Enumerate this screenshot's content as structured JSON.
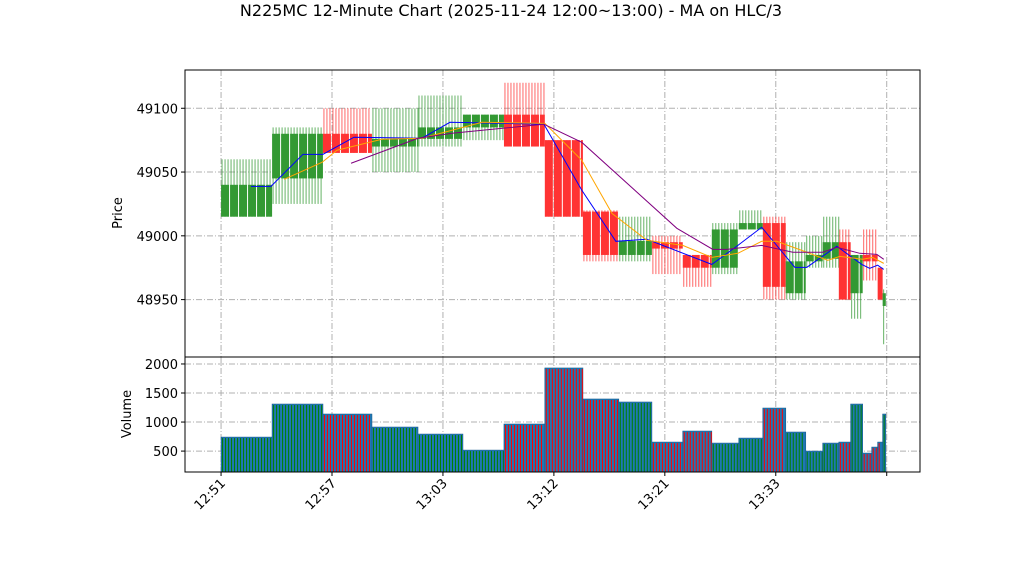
{
  "chart_data": [
    {
      "type": "candlestick",
      "title": "N225MC 12-Minute Chart (2025-11-24 12:00~13:00) - MA on HLC/3",
      "ylabel": "Price",
      "ylim": [
        48905,
        49130
      ],
      "yticks": [
        48950,
        49000,
        49050,
        49100
      ],
      "grid": true,
      "xticks": [
        {
          "index": 0,
          "label": "12:51"
        },
        {
          "index": 6,
          "label": "12:57"
        },
        {
          "index": 12,
          "label": "13:03"
        },
        {
          "index": 18,
          "label": "13:12"
        },
        {
          "index": 24,
          "label": "13:21"
        },
        {
          "index": 30,
          "label": "13:33"
        },
        {
          "index": 36,
          "label": ""
        }
      ],
      "xlim": [
        -1.95,
        37.8
      ],
      "colors": {
        "up": "#339933",
        "down": "#ff3333"
      },
      "candles": [
        {
          "x0": 0,
          "x1": 2.76,
          "open": 49015,
          "high": 49060,
          "low": 49015,
          "close": 49040
        },
        {
          "x0": 2.76,
          "x1": 5.51,
          "open": 49045,
          "high": 49085,
          "low": 49025,
          "close": 49080
        },
        {
          "x0": 5.51,
          "x1": 8.16,
          "open": 49080,
          "high": 49100,
          "low": 49065,
          "close": 49065
        },
        {
          "x0": 8.16,
          "x1": 10.65,
          "open": 49070,
          "high": 49100,
          "low": 49050,
          "close": 49076
        },
        {
          "x0": 10.65,
          "x1": 13.08,
          "open": 49076,
          "high": 49110,
          "low": 49070,
          "close": 49085
        },
        {
          "x0": 13.08,
          "x1": 15.3,
          "open": 49085,
          "high": 49095,
          "low": 49075,
          "close": 49095
        },
        {
          "x0": 15.3,
          "x1": 17.51,
          "open": 49095,
          "high": 49120,
          "low": 49070,
          "close": 49070
        },
        {
          "x0": 17.51,
          "x1": 19.57,
          "open": 49075,
          "high": 49075,
          "low": 49015,
          "close": 49015
        },
        {
          "x0": 19.57,
          "x1": 21.51,
          "open": 49019,
          "high": 49020,
          "low": 48980,
          "close": 48985
        },
        {
          "x0": 21.51,
          "x1": 23.3,
          "open": 48985,
          "high": 49015,
          "low": 48980,
          "close": 48996
        },
        {
          "x0": 23.3,
          "x1": 24.97,
          "open": 48995,
          "high": 49000,
          "low": 48970,
          "close": 48990
        },
        {
          "x0": 24.97,
          "x1": 26.54,
          "open": 48985,
          "high": 48985,
          "low": 48960,
          "close": 48975
        },
        {
          "x0": 26.54,
          "x1": 28.0,
          "open": 48975,
          "high": 49010,
          "low": 48970,
          "close": 49005
        },
        {
          "x0": 28.0,
          "x1": 29.3,
          "open": 49005,
          "high": 49020,
          "low": 49005,
          "close": 49010
        },
        {
          "x0": 29.3,
          "x1": 30.54,
          "open": 49010,
          "high": 49015,
          "low": 48950,
          "close": 48960
        },
        {
          "x0": 30.54,
          "x1": 31.62,
          "open": 48955,
          "high": 48995,
          "low": 48950,
          "close": 48980
        },
        {
          "x0": 31.62,
          "x1": 32.54,
          "open": 48980,
          "high": 49000,
          "low": 48975,
          "close": 48985
        },
        {
          "x0": 32.54,
          "x1": 33.41,
          "open": 48982,
          "high": 49015,
          "low": 48975,
          "close": 48995
        },
        {
          "x0": 33.41,
          "x1": 34.05,
          "open": 48995,
          "high": 49005,
          "low": 48950,
          "close": 48950
        },
        {
          "x0": 34.05,
          "x1": 34.7,
          "open": 48955,
          "high": 48985,
          "low": 48935,
          "close": 48985
        },
        {
          "x0": 34.7,
          "x1": 35.19,
          "open": 48985,
          "high": 49005,
          "low": 48965,
          "close": 48980
        },
        {
          "x0": 35.19,
          "x1": 35.51,
          "open": 48985,
          "high": 49005,
          "low": 48965,
          "close": 48980
        },
        {
          "x0": 35.51,
          "x1": 35.78,
          "open": 48975,
          "high": 48975,
          "low": 48950,
          "close": 48950
        },
        {
          "x0": 35.78,
          "x1": 35.95,
          "open": 48945,
          "high": 48958,
          "low": 48915,
          "close": 48955
        }
      ],
      "moving_averages": [
        {
          "color": "#0000ff",
          "points": [
            [
              1.62,
              49038.8
            ],
            [
              2.7,
              49038.8
            ],
            [
              4.43,
              49063.9
            ],
            [
              5.51,
              49063.9
            ],
            [
              7.19,
              49077.3
            ],
            [
              10.86,
              49076.5
            ],
            [
              12.38,
              49089
            ],
            [
              17.46,
              49087.5
            ],
            [
              19.51,
              49035.7
            ],
            [
              21.35,
              48995.7
            ],
            [
              23.03,
              48997.3
            ],
            [
              26.54,
              48977.6
            ],
            [
              27.89,
              48991.8
            ],
            [
              29.24,
              49006.7
            ],
            [
              31.03,
              48975.3
            ],
            [
              31.68,
              48975.3
            ],
            [
              33.3,
              48991.8
            ],
            [
              34.65,
              48977.6
            ],
            [
              35.08,
              48974.5
            ],
            [
              35.51,
              48977
            ],
            [
              35.84,
              48973.7
            ]
          ]
        },
        {
          "color": "#ffa500",
          "points": [
            [
              3.41,
              49044.3
            ],
            [
              5.46,
              49057.6
            ],
            [
              6.27,
              49067.1
            ],
            [
              8.7,
              49075.7
            ],
            [
              10.86,
              49076.5
            ],
            [
              14.11,
              49089
            ],
            [
              17.51,
              49088.2
            ],
            [
              19.51,
              49059.2
            ],
            [
              21.14,
              49017.6
            ],
            [
              23.03,
              48996.5
            ],
            [
              24.97,
              48992.5
            ],
            [
              26.54,
              48983.1
            ],
            [
              27.95,
              48986.3
            ],
            [
              29.24,
              48995.7
            ],
            [
              30.05,
              48995.7
            ],
            [
              31.68,
              48987.1
            ],
            [
              32.81,
              48980.8
            ],
            [
              33.46,
              48983.9
            ],
            [
              34.7,
              48981.6
            ],
            [
              35.24,
              48983.1
            ],
            [
              35.84,
              48978.4
            ]
          ]
        },
        {
          "color": "#800080",
          "points": [
            [
              7.03,
              49056.9
            ],
            [
              10.65,
              49076.5
            ],
            [
              12.49,
              49080.4
            ],
            [
              17.46,
              49087.5
            ],
            [
              19.51,
              49073.3
            ],
            [
              24.65,
              49005.9
            ],
            [
              26.59,
              48989.4
            ],
            [
              27.35,
              48989.4
            ],
            [
              29.24,
              48992.5
            ],
            [
              30.92,
              48987.1
            ],
            [
              32.54,
              48987.1
            ],
            [
              33.3,
              48991
            ],
            [
              34.54,
              48986.3
            ],
            [
              35.46,
              48985.5
            ],
            [
              35.84,
              48981.6
            ]
          ]
        }
      ]
    },
    {
      "type": "bar",
      "ylabel": "Volume",
      "ylim": [
        140,
        2120
      ],
      "yticks": [
        500,
        1000,
        1500,
        2000
      ],
      "grid": true,
      "colors": {
        "bar": "#1f77b4",
        "up": "#008000",
        "down": "#ff0000"
      },
      "volumes": [
        741,
        1310,
        1138,
        914,
        793,
        517,
        966,
        1931,
        1397,
        1345,
        655,
        845,
        638,
        724,
        1241,
        828,
        500,
        638,
        655,
        1310,
        466,
        569,
        655,
        1138
      ]
    }
  ]
}
